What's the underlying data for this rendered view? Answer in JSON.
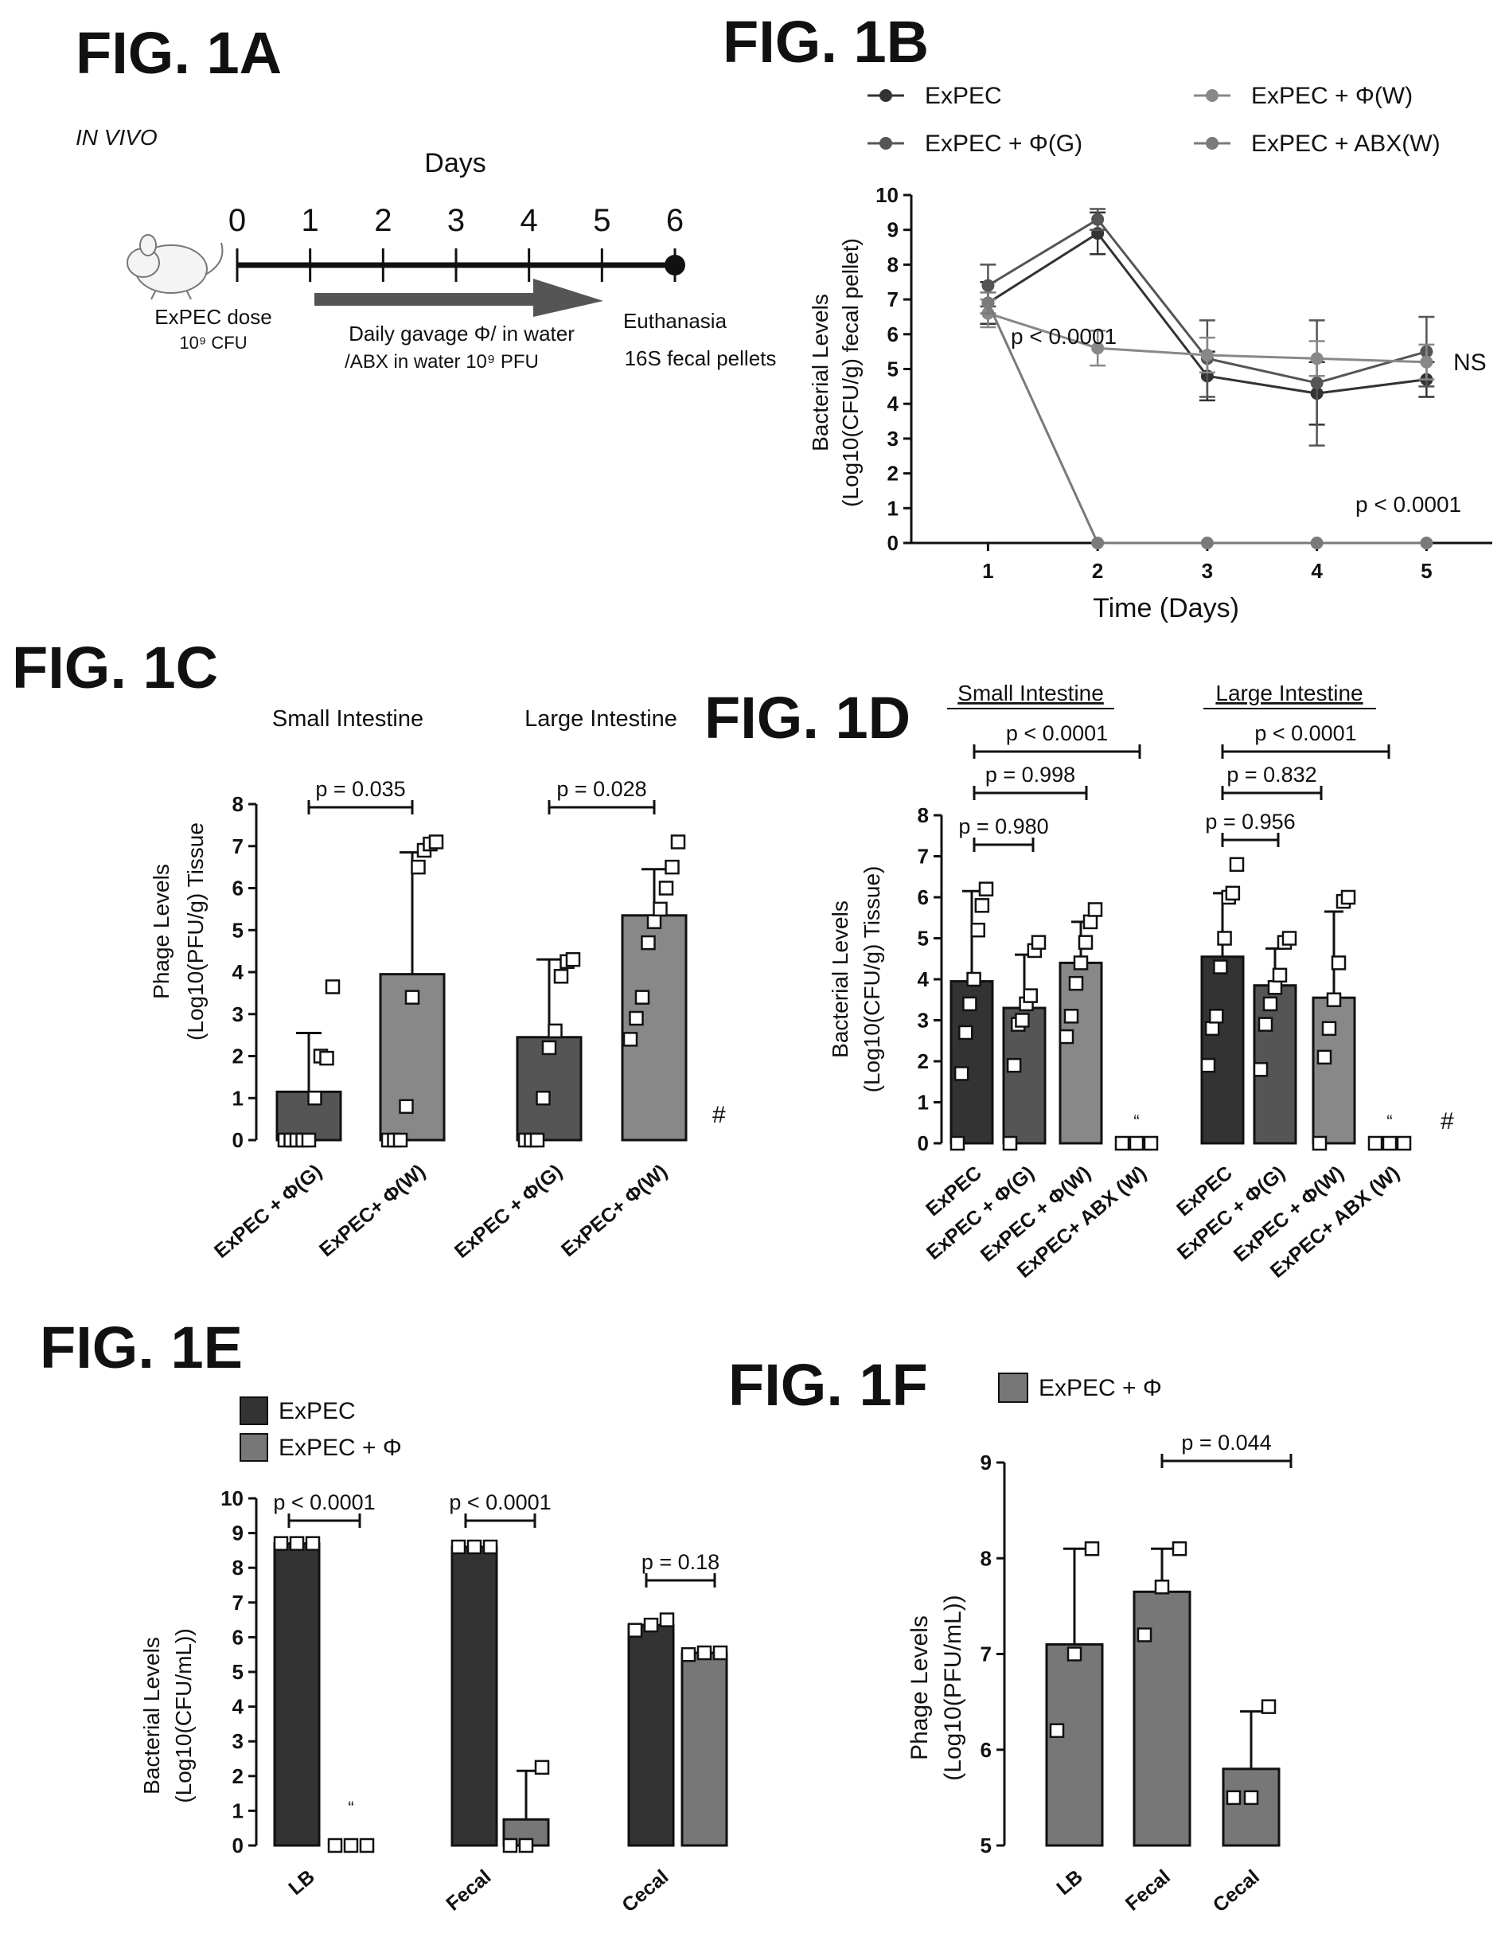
{
  "fig1a": {
    "label": "FIG. 1A",
    "subtitle": "IN VIVO",
    "axis_title": "Days",
    "days": [
      "0",
      "1",
      "2",
      "3",
      "4",
      "5",
      "6"
    ],
    "dose_label": "ExPEC dose",
    "dose_amount": "10⁹ CFU",
    "gavage_line1": "Daily gavage Φ/ in water",
    "gavage_line2": "/ABX in water  10⁹ PFU",
    "end_line1": "Euthanasia",
    "end_line2": "16S fecal pellets"
  },
  "chart_data": [
    {
      "id": "1B",
      "label": "FIG. 1B",
      "type": "line",
      "xlabel": "Time (Days)",
      "ylabel_line1": "Bacterial Levels",
      "ylabel_line2": "(Log10(CFU/g) fecal pellet)",
      "x": [
        1,
        2,
        3,
        4,
        5
      ],
      "xlim": [
        0.3,
        5.6
      ],
      "ylim": [
        0,
        10
      ],
      "yticks": [
        0,
        1,
        2,
        3,
        4,
        5,
        6,
        7,
        8,
        9,
        10
      ],
      "series": [
        {
          "name": "ExPEC",
          "color": "#333333",
          "values": [
            6.9,
            8.9,
            4.8,
            4.3,
            4.7
          ],
          "err": [
            0.6,
            0.6,
            0.7,
            0.9,
            0.5
          ]
        },
        {
          "name": "ExPEC + Φ(G)",
          "color": "#555555",
          "values": [
            7.4,
            9.3,
            5.3,
            4.6,
            5.5
          ],
          "err": [
            0.6,
            0.3,
            1.1,
            1.8,
            1.0
          ]
        },
        {
          "name": "ExPEC +  Φ(W)",
          "color": "#888888",
          "values": [
            6.6,
            5.6,
            5.4,
            5.3,
            5.2
          ],
          "err": [
            0.4,
            0.5,
            0.5,
            0.5,
            0.5
          ]
        },
        {
          "name": "ExPEC + ABX(W)",
          "color": "#7a7a7a",
          "values": [
            6.9,
            0,
            0,
            0,
            0
          ],
          "err": [
            0.3,
            0,
            0,
            0,
            0
          ]
        }
      ],
      "annotations": [
        "p < 0.0001",
        "NS",
        "p < 0.0001"
      ]
    },
    {
      "id": "1C",
      "label": "FIG. 1C",
      "type": "bar",
      "ylabel_line1": "Phage Levels",
      "ylabel_line2": "(Log10(PFU/g) Tissue",
      "ylim": [
        0,
        8
      ],
      "yticks": [
        0,
        1,
        2,
        3,
        4,
        5,
        6,
        7,
        8
      ],
      "groups": [
        "Small Intestine",
        "Large Intestine"
      ],
      "categories": [
        "ExPEC + Φ(G)",
        "ExPEC+  Φ(W)",
        "ExPEC + Φ(G)",
        "ExPEC+  Φ(W)"
      ],
      "values": [
        1.15,
        3.95,
        2.45,
        5.35
      ],
      "err": [
        1.4,
        2.9,
        1.85,
        1.1
      ],
      "colors": [
        "#555555",
        "#888888",
        "#555555",
        "#888888"
      ],
      "points": [
        [
          0,
          0,
          0,
          0,
          0,
          1,
          2,
          1.95,
          3.65
        ],
        [
          0,
          0,
          0,
          0.8,
          3.4,
          6.5,
          6.9,
          7.05,
          7.1
        ],
        [
          0,
          0,
          0,
          1,
          2.2,
          2.6,
          3.9,
          4.25,
          4.3
        ],
        [
          2.4,
          2.9,
          3.4,
          4.7,
          5.2,
          5.5,
          6,
          6.5,
          7.1
        ]
      ],
      "pvalues": [
        "p = 0.035",
        "p = 0.028"
      ],
      "hash": "#"
    },
    {
      "id": "1D",
      "label": "FIG. 1D",
      "type": "bar",
      "ylabel_line1": "Bacterial Levels",
      "ylabel_line2": "(Log10(CFU/g) Tissue)",
      "ylim": [
        0,
        8
      ],
      "yticks": [
        0,
        1,
        2,
        3,
        4,
        5,
        6,
        7,
        8
      ],
      "groups": [
        "Small Intestine",
        "Large Intestine"
      ],
      "categories": [
        "ExPEC",
        "ExPEC + Φ(G)",
        "ExPEC + Φ(W)",
        "ExPEC+ ABX (W)",
        "ExPEC",
        "ExPEC + Φ(G)",
        "ExPEC + Φ(W)",
        "ExPEC+ ABX (W)"
      ],
      "values": [
        3.95,
        3.3,
        4.4,
        0,
        4.55,
        3.85,
        3.55,
        0
      ],
      "err": [
        2.2,
        1.3,
        1.0,
        0,
        1.55,
        0.9,
        2.1,
        0
      ],
      "colors": [
        "#333333",
        "#555555",
        "#888888",
        "#777777",
        "#333333",
        "#555555",
        "#888888",
        "#777777"
      ],
      "points": [
        [
          0,
          1.7,
          2.7,
          3.4,
          4.0,
          5.2,
          5.8,
          6.2
        ],
        [
          0,
          1.9,
          2.9,
          3.0,
          3.4,
          3.6,
          4.7,
          4.9
        ],
        [
          2.6,
          3.1,
          3.9,
          4.4,
          4.9,
          5.4,
          5.7
        ],
        [
          0,
          0,
          0
        ],
        [
          1.9,
          2.8,
          3.1,
          4.3,
          5.0,
          6.0,
          6.1,
          6.8
        ],
        [
          1.8,
          2.9,
          3.4,
          3.8,
          4.1,
          4.9,
          5.0
        ],
        [
          0,
          2.1,
          2.8,
          3.5,
          4.4,
          5.9,
          6.0
        ],
        [
          0,
          0,
          0
        ]
      ],
      "brackets_small": [
        "p = 0.980",
        "p = 0.998",
        "p < 0.0001"
      ],
      "brackets_large": [
        "p = 0.956",
        "p = 0.832",
        "p < 0.0001"
      ],
      "hash": "#",
      "quote_mark": "“"
    },
    {
      "id": "1E",
      "label": "FIG. 1E",
      "type": "bar",
      "ylabel_line1": "Bacterial Levels",
      "ylabel_line2": "(Log10(CFU/mL))",
      "ylim": [
        0,
        10
      ],
      "yticks": [
        0,
        1,
        2,
        3,
        4,
        5,
        6,
        7,
        8,
        9,
        10
      ],
      "categories": [
        "LB",
        "Fecal",
        "Cecal"
      ],
      "series": [
        {
          "name": "ExPEC",
          "color": "#333333",
          "values": [
            8.7,
            8.6,
            6.35
          ],
          "points": [
            [
              8.7,
              8.7,
              8.7
            ],
            [
              8.6,
              8.6,
              8.6
            ],
            [
              6.2,
              6.35,
              6.5
            ]
          ]
        },
        {
          "name": "ExPEC + Φ",
          "color": "#777777",
          "values": [
            0,
            0.75,
            5.55
          ],
          "err": [
            0,
            1.4,
            0
          ],
          "points": [
            [
              0,
              0,
              0
            ],
            [
              0,
              0,
              2.25
            ],
            [
              5.5,
              5.55,
              5.55
            ]
          ]
        }
      ],
      "pvalues": [
        "p < 0.0001",
        "p < 0.0001",
        "p = 0.18"
      ],
      "quote_mark": "“"
    },
    {
      "id": "1F",
      "label": "FIG. 1F",
      "type": "bar",
      "ylabel_line1": "Phage Levels",
      "ylabel_line2": "(Log10(PFU/mL))",
      "ylim": [
        5,
        9
      ],
      "yticks": [
        5,
        6,
        7,
        8,
        9
      ],
      "categories": [
        "LB",
        "Fecal",
        "Cecal"
      ],
      "series": [
        {
          "name": "ExPEC + Φ",
          "color": "#777777",
          "values": [
            7.1,
            7.65,
            5.8
          ],
          "err": [
            1.0,
            0.45,
            0.6
          ],
          "points": [
            [
              6.2,
              7.0,
              8.1
            ],
            [
              7.2,
              7.7,
              8.1
            ],
            [
              5.5,
              5.5,
              6.45
            ]
          ]
        }
      ],
      "pvalues": [
        "p = 0.044"
      ]
    }
  ]
}
